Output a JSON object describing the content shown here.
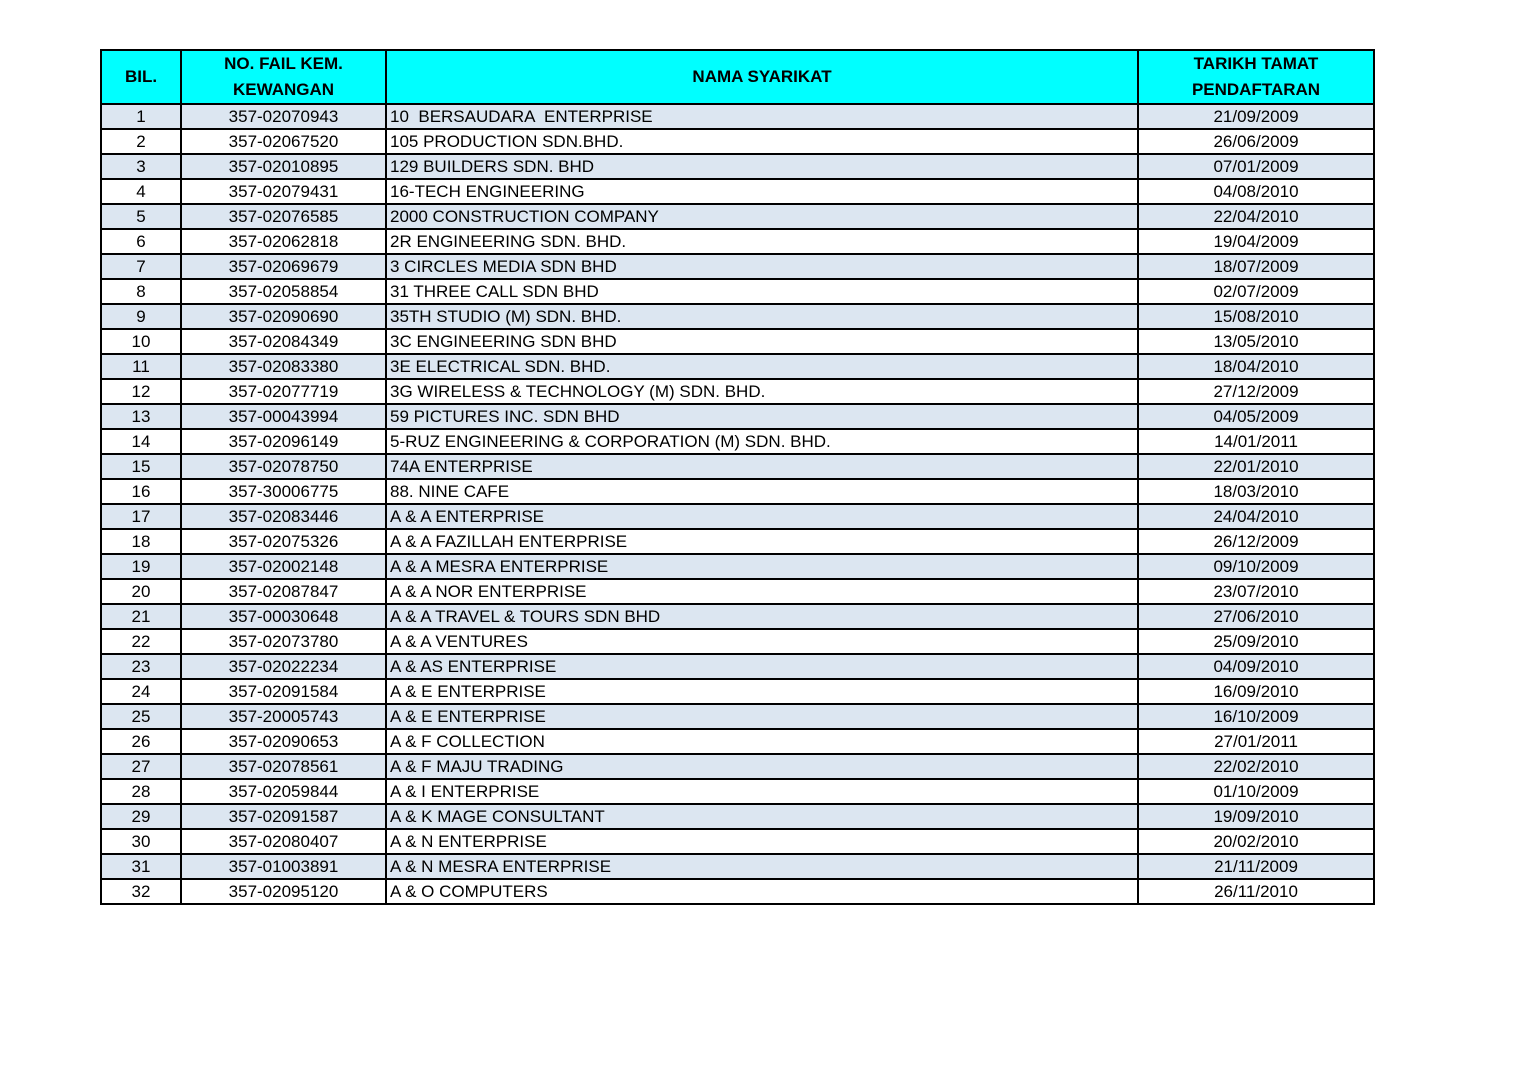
{
  "table": {
    "header": [
      "BIL.",
      "NO. FAIL KEM.\nKEWANGAN",
      "NAMA SYARIKAT",
      "TARIKH TAMAT\nPENDAFTARAN"
    ],
    "rows": [
      [
        "1",
        "357-02070943",
        "10  BERSAUDARA  ENTERPRISE",
        "21/09/2009"
      ],
      [
        "2",
        "357-02067520",
        "105 PRODUCTION SDN.BHD.",
        "26/06/2009"
      ],
      [
        "3",
        "357-02010895",
        "129 BUILDERS SDN. BHD",
        "07/01/2009"
      ],
      [
        "4",
        "357-02079431",
        "16-TECH ENGINEERING",
        "04/08/2010"
      ],
      [
        "5",
        "357-02076585",
        "2000 CONSTRUCTION COMPANY",
        "22/04/2010"
      ],
      [
        "6",
        "357-02062818",
        "2R ENGINEERING SDN. BHD.",
        "19/04/2009"
      ],
      [
        "7",
        "357-02069679",
        "3 CIRCLES MEDIA SDN BHD",
        "18/07/2009"
      ],
      [
        "8",
        "357-02058854",
        "31 THREE CALL SDN BHD",
        "02/07/2009"
      ],
      [
        "9",
        "357-02090690",
        "35TH STUDIO (M) SDN. BHD.",
        "15/08/2010"
      ],
      [
        "10",
        "357-02084349",
        "3C ENGINEERING SDN BHD",
        "13/05/2010"
      ],
      [
        "11",
        "357-02083380",
        "3E ELECTRICAL SDN. BHD.",
        "18/04/2010"
      ],
      [
        "12",
        "357-02077719",
        "3G WIRELESS & TECHNOLOGY (M) SDN. BHD.",
        "27/12/2009"
      ],
      [
        "13",
        "357-00043994",
        "59 PICTURES INC. SDN BHD",
        "04/05/2009"
      ],
      [
        "14",
        "357-02096149",
        "5-RUZ ENGINEERING & CORPORATION (M) SDN. BHD.",
        "14/01/2011"
      ],
      [
        "15",
        "357-02078750",
        "74A ENTERPRISE",
        "22/01/2010"
      ],
      [
        "16",
        "357-30006775",
        "88. NINE CAFE",
        "18/03/2010"
      ],
      [
        "17",
        "357-02083446",
        "A & A ENTERPRISE",
        "24/04/2010"
      ],
      [
        "18",
        "357-02075326",
        "A & A FAZILLAH ENTERPRISE",
        "26/12/2009"
      ],
      [
        "19",
        "357-02002148",
        "A & A MESRA ENTERPRISE",
        "09/10/2009"
      ],
      [
        "20",
        "357-02087847",
        "A & A NOR ENTERPRISE",
        "23/07/2010"
      ],
      [
        "21",
        "357-00030648",
        "A & A TRAVEL & TOURS SDN BHD",
        "27/06/2010"
      ],
      [
        "22",
        "357-02073780",
        "A & A VENTURES",
        "25/09/2010"
      ],
      [
        "23",
        "357-02022234",
        "A & AS ENTERPRISE",
        "04/09/2010"
      ],
      [
        "24",
        "357-02091584",
        "A & E ENTERPRISE",
        "16/09/2010"
      ],
      [
        "25",
        "357-20005743",
        "A & E ENTERPRISE",
        "16/10/2009"
      ],
      [
        "26",
        "357-02090653",
        "A & F COLLECTION",
        "27/01/2011"
      ],
      [
        "27",
        "357-02078561",
        "A & F MAJU TRADING",
        "22/02/2010"
      ],
      [
        "28",
        "357-02059844",
        "A & I ENTERPRISE",
        "01/10/2009"
      ],
      [
        "29",
        "357-02091587",
        "A & K MAGE CONSULTANT",
        "19/09/2010"
      ],
      [
        "30",
        "357-02080407",
        "A & N ENTERPRISE",
        "20/02/2010"
      ],
      [
        "31",
        "357-01003891",
        "A & N MESRA ENTERPRISE",
        "21/11/2009"
      ],
      [
        "32",
        "357-02095120",
        "A & O COMPUTERS",
        "26/11/2010"
      ]
    ]
  }
}
